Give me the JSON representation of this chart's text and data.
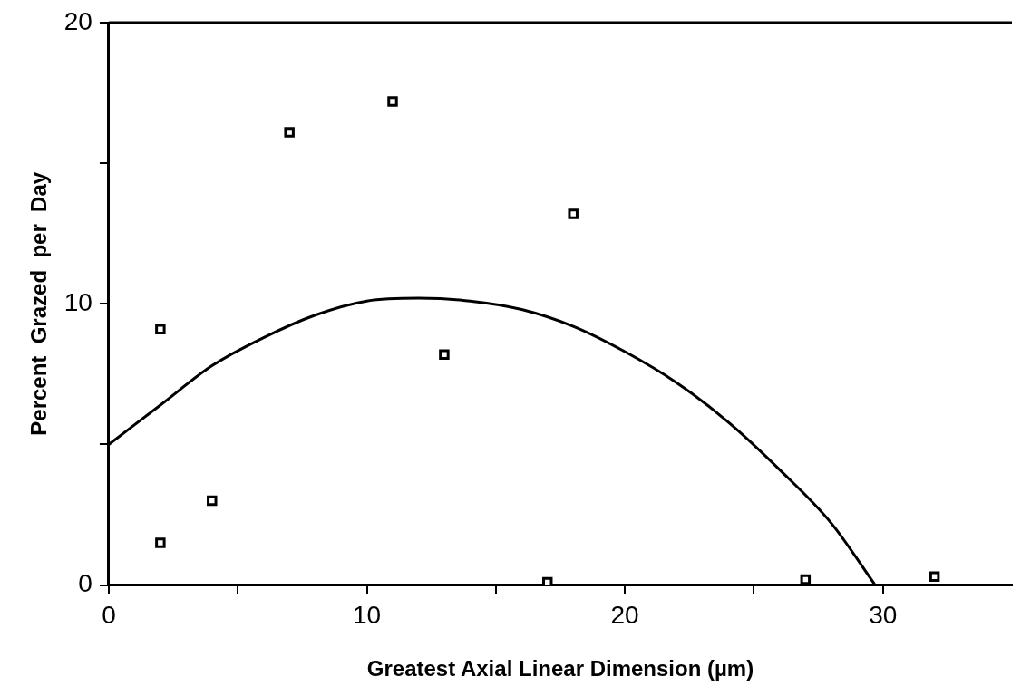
{
  "chart_data": {
    "type": "scatter",
    "xlabel": "Greatest Axial Linear Dimension (µm)",
    "ylabel": "Percent  Grazed  per  Day",
    "xlim": [
      0,
      35
    ],
    "xticks": [
      0,
      {
        "value": 5,
        "label": null
      },
      10,
      {
        "value": 15,
        "label": null
      },
      20,
      {
        "value": 25,
        "label": null
      },
      30
    ],
    "ylim": [
      0,
      20
    ],
    "yticks": [
      0,
      {
        "value": 5,
        "label": null
      },
      10,
      {
        "value": 15,
        "label": null
      },
      20
    ],
    "grid": false,
    "legend": false,
    "marker": "square",
    "series": [
      {
        "color": "#000000",
        "x": [
          2,
          2,
          4,
          7,
          11,
          13,
          18,
          17,
          27,
          32
        ],
        "values": [
          9.1,
          1.5,
          3.0,
          16.1,
          17.2,
          8.2,
          13.2,
          0.1,
          0.2,
          0.3
        ]
      },
      {
        "type": "line",
        "color": "#000000",
        "marker": "none",
        "line_style": "solid",
        "x": [
          0,
          2,
          4,
          6,
          8,
          10,
          12,
          14,
          16,
          18,
          20,
          22,
          24,
          26,
          28,
          29.7
        ],
        "values": [
          5.0,
          6.4,
          7.8,
          8.8,
          9.6,
          10.1,
          10.2,
          10.1,
          9.8,
          9.2,
          8.3,
          7.2,
          5.8,
          4.1,
          2.2,
          0
        ]
      }
    ]
  }
}
